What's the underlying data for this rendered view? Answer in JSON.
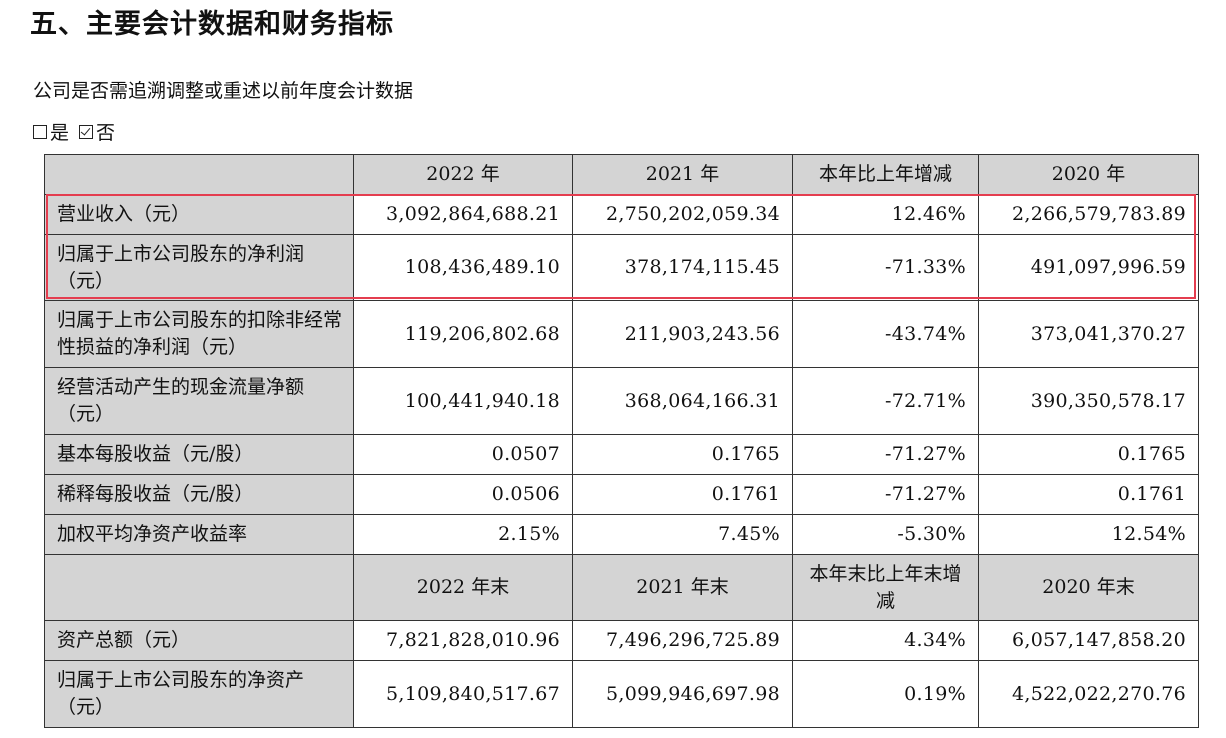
{
  "title": "五、主要会计数据和财务指标",
  "question": "公司是否需追溯调整或重述以前年度会计数据",
  "options": {
    "yes": {
      "label": "是",
      "checked": false
    },
    "no": {
      "label": "否",
      "checked": true
    }
  },
  "table": {
    "header1": [
      "",
      "2022 年",
      "2021 年",
      "本年比上年增减",
      "2020 年"
    ],
    "rows1": [
      {
        "label": "营业收入（元）",
        "values": [
          "3,092,864,688.21",
          "2,750,202,059.34",
          "12.46%",
          "2,266,579,783.89"
        ]
      },
      {
        "label": "归属于上市公司股东的净利润（元）",
        "values": [
          "108,436,489.10",
          "378,174,115.45",
          "-71.33%",
          "491,097,996.59"
        ]
      },
      {
        "label": "归属于上市公司股东的扣除非经常性损益的净利润（元）",
        "values": [
          "119,206,802.68",
          "211,903,243.56",
          "-43.74%",
          "373,041,370.27"
        ]
      },
      {
        "label": "经营活动产生的现金流量净额（元）",
        "values": [
          "100,441,940.18",
          "368,064,166.31",
          "-72.71%",
          "390,350,578.17"
        ]
      },
      {
        "label": "基本每股收益（元/股）",
        "values": [
          "0.0507",
          "0.1765",
          "-71.27%",
          "0.1765"
        ]
      },
      {
        "label": "稀释每股收益（元/股）",
        "values": [
          "0.0506",
          "0.1761",
          "-71.27%",
          "0.1761"
        ]
      },
      {
        "label": "加权平均净资产收益率",
        "values": [
          "2.15%",
          "7.45%",
          "-5.30%",
          "12.54%"
        ]
      }
    ],
    "header2": [
      "",
      "2022 年末",
      "2021 年末",
      "本年末比上年末增减",
      "2020 年末"
    ],
    "rows2": [
      {
        "label": "资产总额（元）",
        "values": [
          "7,821,828,010.96",
          "7,496,296,725.89",
          "4.34%",
          "6,057,147,858.20"
        ]
      },
      {
        "label": "归属于上市公司股东的净资产（元）",
        "values": [
          "5,109,840,517.67",
          "5,099,946,697.98",
          "0.19%",
          "4,522,022,270.76"
        ]
      }
    ]
  },
  "highlight_color": "#e43d4f",
  "header_bg": "#d4d4d4"
}
